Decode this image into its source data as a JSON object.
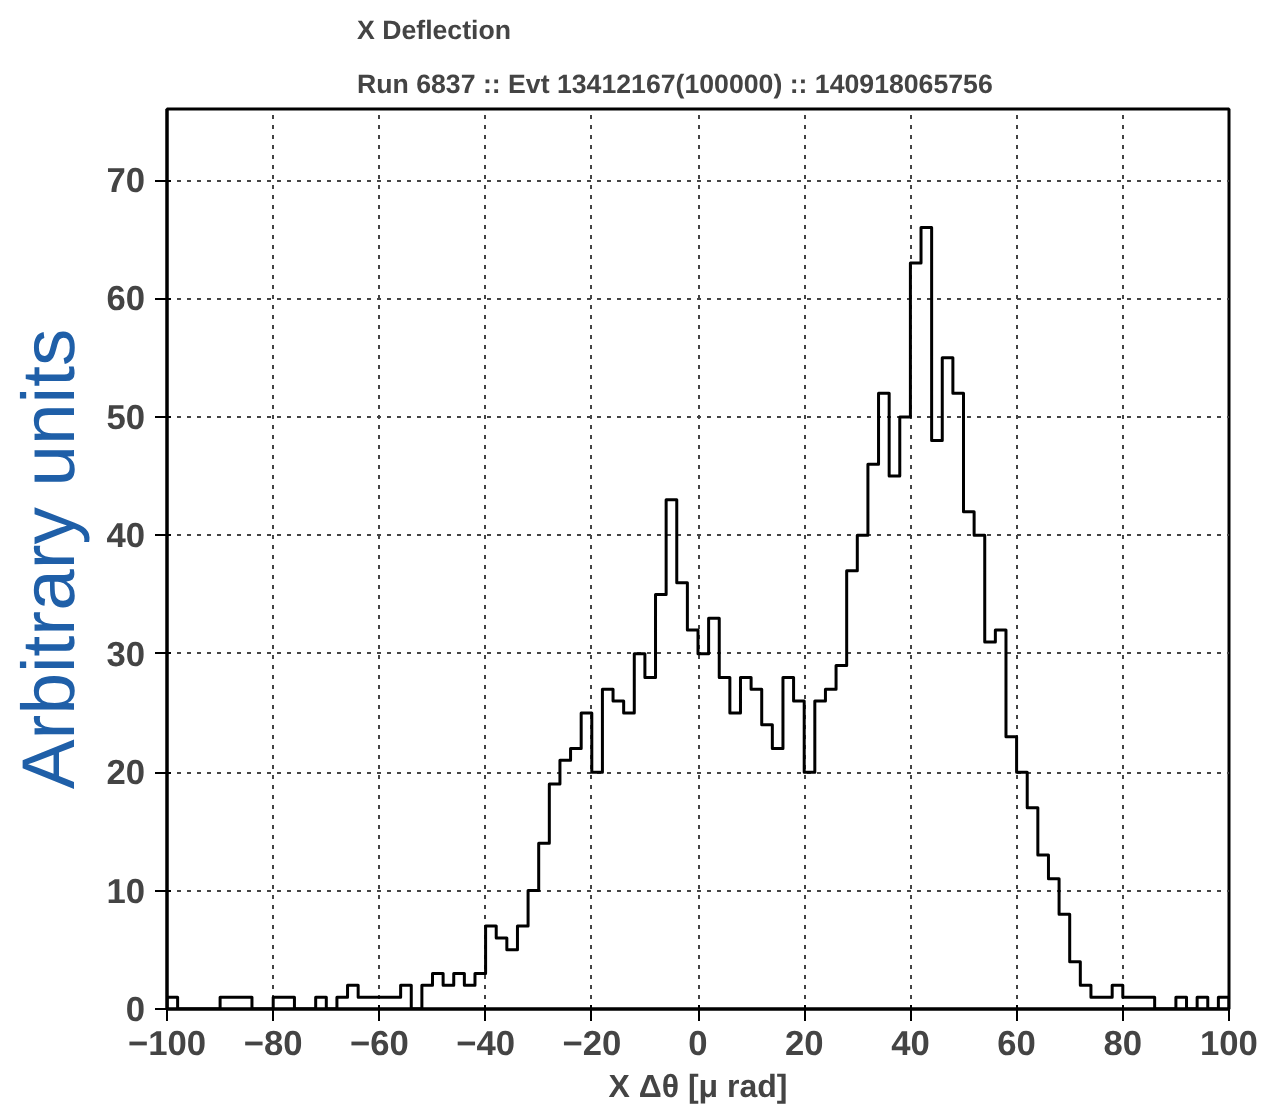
{
  "chart_data": {
    "type": "histogram",
    "title": "X Deflection",
    "subtitle": "Run 6837 :: Evt 13412167(100000) :: 140918065756",
    "xlabel": "X Δθ [μ rad]",
    "ylabel": "Arbitrary units",
    "bins": [
      -100,
      -98,
      -96,
      -94,
      -92,
      -90,
      -88,
      -86,
      -84,
      -82,
      -80,
      -78,
      -76,
      -74,
      -72,
      -70,
      -68,
      -66,
      -64,
      -62,
      -60,
      -58,
      -56,
      -54,
      -52,
      -50,
      -48,
      -46,
      -44,
      -42,
      -40,
      -38,
      -36,
      -34,
      -32,
      -30,
      -28,
      -26,
      -24,
      -22,
      -20,
      -18,
      -16,
      -14,
      -12,
      -10,
      -8,
      -6,
      -4,
      -2,
      0,
      2,
      4,
      6,
      8,
      10,
      12,
      14,
      16,
      18,
      20,
      22,
      24,
      26,
      28,
      30,
      32,
      34,
      36,
      38,
      40,
      42,
      44,
      46,
      48,
      50,
      52,
      54,
      56,
      58,
      60,
      62,
      64,
      66,
      68,
      70,
      72,
      74,
      76,
      78,
      80,
      82,
      84,
      86,
      88,
      90,
      92,
      94,
      96,
      98,
      100
    ],
    "values": [
      1,
      0,
      0,
      0,
      0,
      1,
      1,
      1,
      0,
      0,
      1,
      1,
      0,
      0,
      1,
      0,
      1,
      2,
      1,
      1,
      1,
      1,
      2,
      0,
      2,
      3,
      2,
      3,
      2,
      3,
      7,
      6,
      5,
      7,
      10,
      14,
      19,
      21,
      22,
      25,
      20,
      27,
      26,
      25,
      30,
      28,
      35,
      43,
      36,
      32,
      30,
      33,
      28,
      25,
      28,
      27,
      24,
      22,
      28,
      26,
      20,
      26,
      27,
      29,
      37,
      40,
      46,
      52,
      45,
      50,
      63,
      66,
      48,
      55,
      52,
      42,
      40,
      31,
      32,
      23,
      20,
      17,
      13,
      11,
      8,
      4,
      2,
      1,
      1,
      2,
      1,
      1,
      1,
      0,
      0,
      1,
      0,
      1,
      0,
      1
    ],
    "color": "#000000",
    "xlim": [
      -100,
      100
    ],
    "ylim": [
      0,
      76
    ],
    "xticks": [
      -100,
      -80,
      -60,
      -40,
      -20,
      0,
      20,
      40,
      60,
      80,
      100
    ],
    "yticks": [
      0,
      10,
      20,
      30,
      40,
      50,
      60,
      70
    ],
    "grid": true
  }
}
